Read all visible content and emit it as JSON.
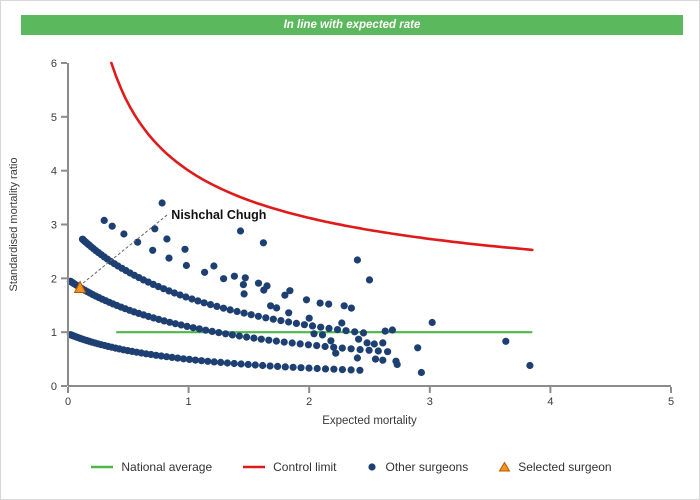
{
  "banner": {
    "text": "In line with expected rate",
    "background": "#5cb85c",
    "text_color": "#ffffff"
  },
  "chart_data": {
    "type": "scatter",
    "subtype": "funnel-plot",
    "title": "In line with expected rate",
    "xlabel": "Expected mortality",
    "ylabel": "Standardised mortality ratio",
    "xlim": [
      0,
      5
    ],
    "ylim": [
      0,
      6
    ],
    "x_ticks": [
      0,
      1,
      2,
      3,
      4,
      5
    ],
    "y_ticks": [
      0,
      1,
      2,
      3,
      4,
      5,
      6
    ],
    "grid": false,
    "legend_position": "bottom",
    "axis_color": "#8c8c8c",
    "tick_label_color": "#3a3a3a",
    "national_average": {
      "label": "National average",
      "y": 1.0,
      "x_start": 0.4,
      "x_end": 3.85,
      "color": "#4cb848"
    },
    "control_limit": {
      "label": "Control limit",
      "formula": "y = 1 + 3/sqrt(x)",
      "coefficient": 3.0,
      "baseline": 1.0,
      "x_start": 0.36,
      "x_end": 3.85,
      "color": "#e01a1a"
    },
    "selected_surgeon": {
      "name": "Nishchal Chugh",
      "x": 0.1,
      "y": 1.82,
      "marker": "triangle",
      "fill": "#f6921e",
      "stroke": "#b55a00",
      "label_x": 0.84,
      "label_y": 3.18
    },
    "other_surgeons": {
      "color": "#1d3f72",
      "point_radius": 3.6,
      "strands": [
        {
          "a": 1.01,
          "b": 1.04,
          "x_start": 0.02,
          "x_end": 2.42,
          "n": 60,
          "spread": 1.8
        },
        {
          "a": 2.49,
          "b": 1.26,
          "x_start": 0.02,
          "x_end": 2.65,
          "n": 62,
          "spread": 1.8
        },
        {
          "a": 3.6,
          "b": 1.2,
          "x_start": 0.12,
          "x_end": 2.45,
          "n": 55,
          "spread": 1.7
        },
        {
          "a": 5.6,
          "b": 1.52,
          "x_start": 0.3,
          "x_end": 2.35,
          "n": 15,
          "spread": 1.3
        }
      ],
      "extra_points": [
        [
          0.78,
          3.4
        ],
        [
          1.43,
          2.88
        ],
        [
          0.72,
          2.92
        ],
        [
          0.82,
          2.73
        ],
        [
          0.97,
          2.54
        ],
        [
          1.21,
          2.23
        ],
        [
          1.62,
          2.66
        ],
        [
          2.4,
          2.34
        ],
        [
          2.5,
          1.97
        ],
        [
          1.38,
          2.04
        ],
        [
          1.47,
          2.01
        ],
        [
          1.58,
          1.91
        ],
        [
          1.65,
          1.86
        ],
        [
          1.84,
          1.77
        ],
        [
          1.46,
          1.71
        ],
        [
          2.09,
          1.54
        ],
        [
          2.29,
          1.49
        ],
        [
          1.68,
          1.49
        ],
        [
          1.73,
          1.45
        ],
        [
          1.83,
          1.36
        ],
        [
          2.0,
          1.26
        ],
        [
          2.27,
          1.17
        ],
        [
          3.02,
          1.18
        ],
        [
          2.63,
          1.02
        ],
        [
          2.69,
          1.04
        ],
        [
          2.04,
          0.97
        ],
        [
          2.11,
          0.95
        ],
        [
          2.18,
          0.84
        ],
        [
          2.41,
          0.87
        ],
        [
          2.48,
          0.8
        ],
        [
          2.54,
          0.78
        ],
        [
          2.61,
          0.8
        ],
        [
          2.9,
          0.71
        ],
        [
          2.22,
          0.61
        ],
        [
          2.4,
          0.52
        ],
        [
          2.55,
          0.5
        ],
        [
          2.61,
          0.48
        ],
        [
          2.72,
          0.46
        ],
        [
          2.73,
          0.4
        ],
        [
          2.93,
          0.25
        ],
        [
          3.63,
          0.83
        ],
        [
          3.83,
          0.38
        ]
      ]
    }
  },
  "legend": {
    "items": [
      {
        "label": "National average",
        "swatch": "line",
        "color": "#4cb848"
      },
      {
        "label": "Control limit",
        "swatch": "line",
        "color": "#e01a1a"
      },
      {
        "label": "Other surgeons",
        "swatch": "dot",
        "color": "#1d3f72"
      },
      {
        "label": "Selected surgeon",
        "swatch": "triangle",
        "color": "#f6921e"
      }
    ]
  }
}
